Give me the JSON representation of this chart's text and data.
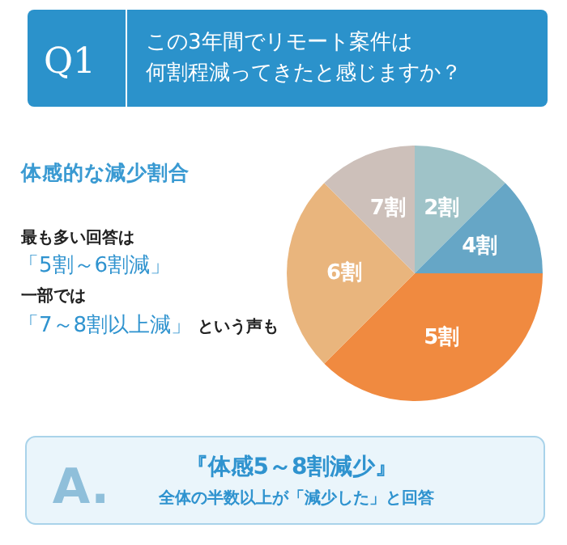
{
  "chart_data": {
    "type": "pie",
    "title": "この3年間でリモート案件は何割程減ってきたと感じますか？",
    "subtitle": "体感的な減少割合",
    "categories": [
      "2割",
      "4割",
      "5割",
      "6割",
      "7割"
    ],
    "values": [
      12.5,
      12.5,
      37.5,
      25,
      12.5
    ],
    "colors": [
      "#9fc3c8",
      "#66a6c6",
      "#f08a40",
      "#e9b57d",
      "#cdc0ba"
    ],
    "annotations": [
      "Q1",
      "最も多い回答は",
      "「5割～6割減」",
      "一部では",
      "「7～8割以上減」",
      "という声も",
      "A.",
      "『体感5～8割減少』",
      "全体の半数以上が「減少した」と回答"
    ]
  }
}
